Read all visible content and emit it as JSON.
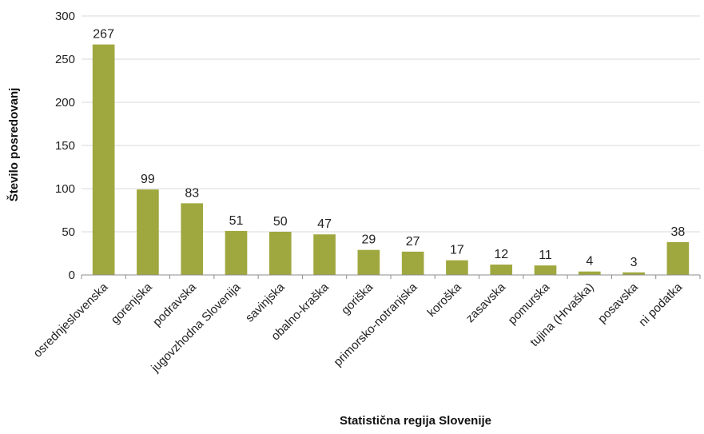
{
  "chart_data": {
    "type": "bar",
    "xlabel": "Statistična regija Slovenije",
    "ylabel": "Število posredovanj",
    "ylim": [
      0,
      300
    ],
    "yticks": [
      0,
      50,
      100,
      150,
      200,
      250,
      300
    ],
    "grid": true,
    "legend": "none",
    "bar_color": "#9fa83e",
    "categories": [
      "osrednjeslovenska",
      "gorenjska",
      "podravska",
      "jugovzhodna Slovenija",
      "savinjska",
      "obalno-kraška",
      "goriška",
      "primorsko-notranjska",
      "koroška",
      "zasavska",
      "pomurska",
      "tujina (Hrvaška)",
      "posavska",
      "ni podatka"
    ],
    "values": [
      267,
      99,
      83,
      51,
      50,
      47,
      29,
      27,
      17,
      12,
      11,
      4,
      3,
      38
    ]
  }
}
